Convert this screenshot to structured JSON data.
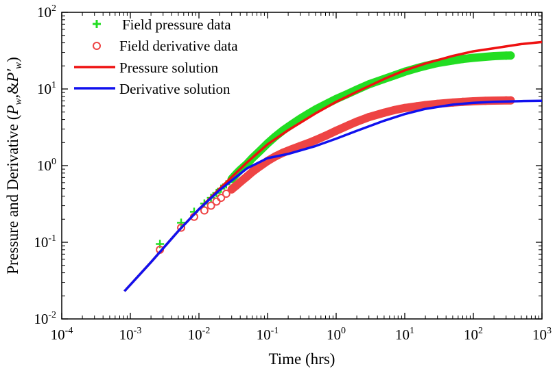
{
  "chart_data": {
    "type": "line",
    "title": "",
    "xlabel": "Time (hrs)",
    "ylabel_parts": {
      "prefix": "Pressure and Derivative (",
      "p": "P",
      "p_sub": "w",
      "amp": ",&",
      "pd": "P'",
      "pd_sub": "w",
      "suffix": ")"
    },
    "xscale": "log",
    "yscale": "log",
    "xlim": [
      0.0001,
      1000
    ],
    "ylim": [
      0.01,
      100
    ],
    "x_ticks": [
      {
        "base": "10",
        "exp": "-4"
      },
      {
        "base": "10",
        "exp": "-3"
      },
      {
        "base": "10",
        "exp": "-2"
      },
      {
        "base": "10",
        "exp": "-1"
      },
      {
        "base": "10",
        "exp": "0"
      },
      {
        "base": "10",
        "exp": "1"
      },
      {
        "base": "10",
        "exp": "2"
      },
      {
        "base": "10",
        "exp": "3"
      }
    ],
    "y_ticks": [
      {
        "base": "10",
        "exp": "-2"
      },
      {
        "base": "10",
        "exp": "-1"
      },
      {
        "base": "10",
        "exp": "0"
      },
      {
        "base": "10",
        "exp": "1"
      },
      {
        "base": "10",
        "exp": "2"
      }
    ],
    "grid": false,
    "legend_position": "top-left",
    "legend": [
      {
        "label": "Field pressure data",
        "style": "plus",
        "color": "#22dd22"
      },
      {
        "label": "Field derivative data",
        "style": "circle",
        "color": "#ee4444"
      },
      {
        "label": "Pressure solution",
        "style": "line",
        "color": "#ee1111"
      },
      {
        "label": "Derivative solution",
        "style": "line",
        "color": "#1111ee"
      }
    ],
    "series": [
      {
        "name": "Field pressure data",
        "kind": "plus",
        "color": "#22dd22",
        "x": [
          0.0027,
          0.0055,
          0.0085,
          0.012,
          0.015,
          0.018,
          0.021,
          0.025,
          0.03,
          0.035,
          0.04,
          0.05,
          0.06,
          0.08,
          0.1,
          0.13,
          0.17,
          0.22,
          0.3,
          0.4,
          0.5,
          0.7,
          1,
          1.5,
          2,
          3,
          5,
          7,
          10,
          15,
          20,
          30,
          50,
          70,
          100,
          150,
          200,
          300,
          350
        ],
        "y": [
          0.095,
          0.18,
          0.25,
          0.32,
          0.38,
          0.44,
          0.5,
          0.57,
          0.67,
          0.78,
          0.88,
          1.05,
          1.25,
          1.6,
          1.95,
          2.4,
          2.9,
          3.4,
          4.1,
          4.8,
          5.4,
          6.3,
          7.4,
          8.7,
          9.8,
          11.5,
          13.5,
          15,
          16.8,
          18.7,
          20,
          21.8,
          23.5,
          24.6,
          25.5,
          26.3,
          26.8,
          27.2,
          27.3
        ]
      },
      {
        "name": "Field derivative data",
        "kind": "circle",
        "color": "#ee4444",
        "x": [
          0.0027,
          0.0055,
          0.0085,
          0.012,
          0.015,
          0.018,
          0.021,
          0.025,
          0.03,
          0.035,
          0.04,
          0.05,
          0.06,
          0.08,
          0.1,
          0.13,
          0.17,
          0.22,
          0.3,
          0.4,
          0.5,
          0.7,
          1,
          1.5,
          2,
          3,
          5,
          7,
          10,
          15,
          20,
          30,
          50,
          70,
          100,
          150,
          200,
          300,
          350
        ],
        "y": [
          0.08,
          0.155,
          0.215,
          0.26,
          0.3,
          0.34,
          0.38,
          0.43,
          0.49,
          0.55,
          0.61,
          0.72,
          0.83,
          1.0,
          1.15,
          1.32,
          1.48,
          1.62,
          1.8,
          1.98,
          2.15,
          2.45,
          2.85,
          3.35,
          3.75,
          4.3,
          4.9,
          5.3,
          5.65,
          5.95,
          6.15,
          6.4,
          6.65,
          6.8,
          6.9,
          7.0,
          7.05,
          7.1,
          7.1
        ]
      },
      {
        "name": "Pressure solution",
        "kind": "line",
        "color": "#ee1111",
        "x": [
          0.00082,
          0.002,
          0.005,
          0.01,
          0.02,
          0.05,
          0.1,
          0.2,
          0.5,
          1,
          2,
          5,
          10,
          20,
          50,
          100,
          200,
          500,
          1000
        ],
        "y": [
          0.023,
          0.055,
          0.14,
          0.27,
          0.5,
          1.1,
          1.9,
          2.9,
          4.8,
          6.8,
          9.2,
          13.5,
          17.5,
          21.5,
          27,
          31,
          34,
          38.5,
          41
        ]
      },
      {
        "name": "Derivative solution",
        "kind": "line",
        "color": "#1111ee",
        "x": [
          0.00082,
          0.002,
          0.005,
          0.01,
          0.02,
          0.05,
          0.1,
          0.2,
          0.5,
          1,
          2,
          5,
          10,
          20,
          50,
          100,
          200,
          500,
          1000
        ],
        "y": [
          0.023,
          0.055,
          0.14,
          0.27,
          0.48,
          0.92,
          1.25,
          1.42,
          1.8,
          2.25,
          2.85,
          3.85,
          4.7,
          5.5,
          6.25,
          6.6,
          6.8,
          6.95,
          7.0
        ]
      }
    ]
  }
}
